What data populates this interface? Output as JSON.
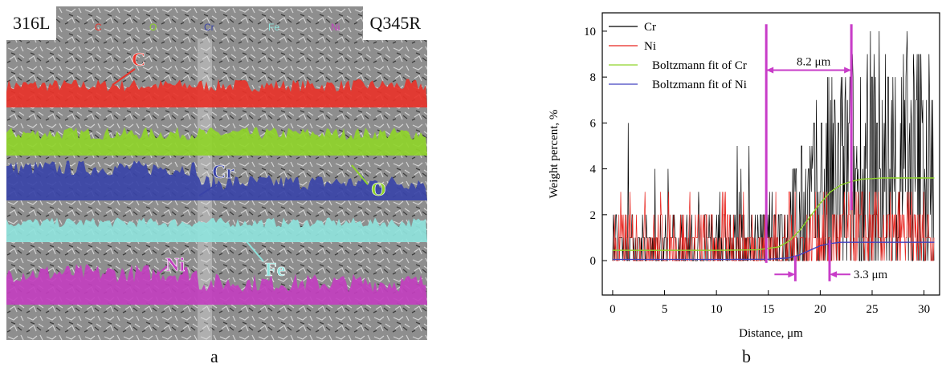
{
  "figure": {
    "panel_labels": [
      "a",
      "b"
    ],
    "map": {
      "left_material": "316L",
      "right_material": "Q345R",
      "elements": [
        {
          "label": "C",
          "color": "#e8332a"
        },
        {
          "label": "O",
          "color": "#8fd42a"
        },
        {
          "label": "Cr",
          "color": "#3a44a8"
        },
        {
          "label": "Fe",
          "color": "#8fe3dc"
        },
        {
          "label": "Ni",
          "color": "#c23fbf"
        }
      ]
    }
  },
  "chart_data": {
    "type": "line",
    "xlabel": "Distance, μm",
    "ylabel": "Weight percent, %",
    "xlim": [
      -1,
      31.5
    ],
    "ylim": [
      -1.5,
      10.8
    ],
    "xticks": [
      0,
      5,
      10,
      15,
      20,
      25,
      30
    ],
    "yticks": [
      0,
      2,
      4,
      6,
      8,
      10
    ],
    "legend_position": "top-left",
    "series": [
      {
        "name": "Cr",
        "color": "#000000",
        "style": "noisy",
        "x": [
          0,
          5,
          10,
          14,
          15,
          16,
          17,
          18,
          19,
          20,
          21,
          22,
          23,
          24,
          25,
          26,
          27,
          28,
          29,
          30,
          31
        ],
        "y": [
          0.5,
          0.5,
          0.5,
          0.6,
          0.8,
          1.0,
          1.3,
          1.7,
          2.2,
          2.6,
          3.0,
          3.2,
          3.4,
          3.5,
          3.6,
          3.6,
          3.6,
          3.6,
          3.6,
          3.6,
          3.6
        ]
      },
      {
        "name": "Ni",
        "color": "#e8251f",
        "style": "noisy",
        "x": [
          0,
          5,
          10,
          15,
          17,
          18,
          19,
          20,
          21,
          22,
          25,
          31
        ],
        "y": [
          0.3,
          0.3,
          0.3,
          0.35,
          0.4,
          0.5,
          0.6,
          0.7,
          0.8,
          0.8,
          0.8,
          0.8
        ]
      },
      {
        "name": "Boltzmann fit of Cr",
        "color": "#8fd42a",
        "style": "smooth",
        "x": [
          0,
          5,
          10,
          14,
          16,
          17,
          18,
          19,
          20,
          21,
          22,
          23,
          24,
          26,
          31
        ],
        "y": [
          0.45,
          0.45,
          0.45,
          0.47,
          0.6,
          0.85,
          1.3,
          1.9,
          2.5,
          3.0,
          3.3,
          3.45,
          3.55,
          3.6,
          3.6
        ]
      },
      {
        "name": "Boltzmann fit of Ni",
        "color": "#4040c0",
        "style": "smooth",
        "x": [
          0,
          5,
          10,
          15,
          17,
          18,
          19,
          20,
          21,
          22,
          25,
          31
        ],
        "y": [
          0.05,
          0.05,
          0.05,
          0.06,
          0.12,
          0.25,
          0.45,
          0.65,
          0.75,
          0.8,
          0.8,
          0.8
        ]
      }
    ],
    "annotations": [
      {
        "text": "8.2 μm",
        "x_start": 14.8,
        "x_end": 23.0,
        "y": 8.3
      },
      {
        "text": "3.3 μm",
        "x_start": 17.6,
        "x_end": 20.9,
        "y": -0.6
      }
    ]
  }
}
